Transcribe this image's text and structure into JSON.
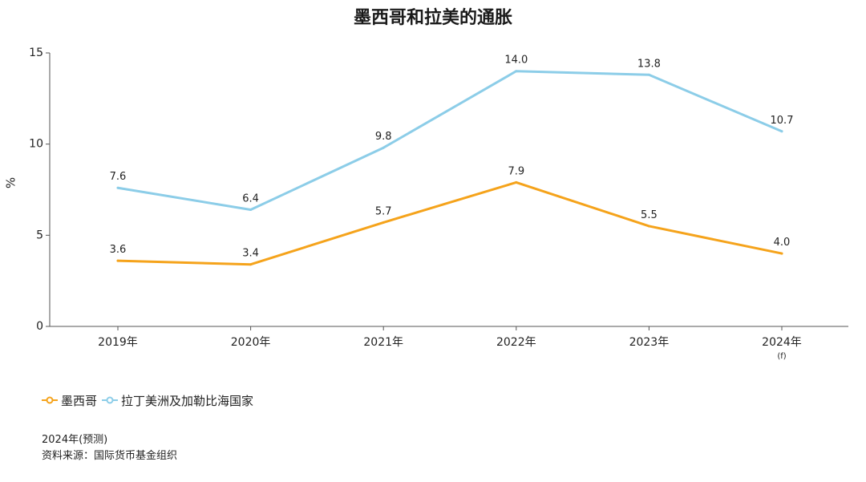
{
  "title": "墨西哥和拉美的通胀",
  "chart_data": {
    "type": "line",
    "title": "墨西哥和拉美的通胀",
    "categories": [
      "2019年",
      "2020年",
      "2021年",
      "2022年",
      "2023年",
      "2024年"
    ],
    "category_notes": [
      "",
      "",
      "",
      "",
      "",
      "(f)"
    ],
    "xlabel": "",
    "ylabel": "%",
    "ylim": [
      0,
      15
    ],
    "yticks": [
      0,
      5,
      10,
      15
    ],
    "grid": false,
    "legend_position": "bottom-left",
    "series": [
      {
        "name": "墨西哥",
        "color": "#f5a31b",
        "values": [
          3.6,
          3.4,
          5.7,
          7.9,
          5.5,
          4.0
        ],
        "labels": [
          "3.6",
          "3.4",
          "5.7",
          "7.9",
          "5.5",
          "4.0"
        ]
      },
      {
        "name": "拉丁美洲及加勒比海国家",
        "color": "#8ccde8",
        "values": [
          7.6,
          6.4,
          9.8,
          14.0,
          13.8,
          10.7
        ],
        "labels": [
          "7.6",
          "6.4",
          "9.8",
          "14.0",
          "13.8",
          "10.7"
        ]
      }
    ]
  },
  "notes": {
    "forecast": "2024年(预测)",
    "source": "资料来源：国际货币基金组织"
  }
}
